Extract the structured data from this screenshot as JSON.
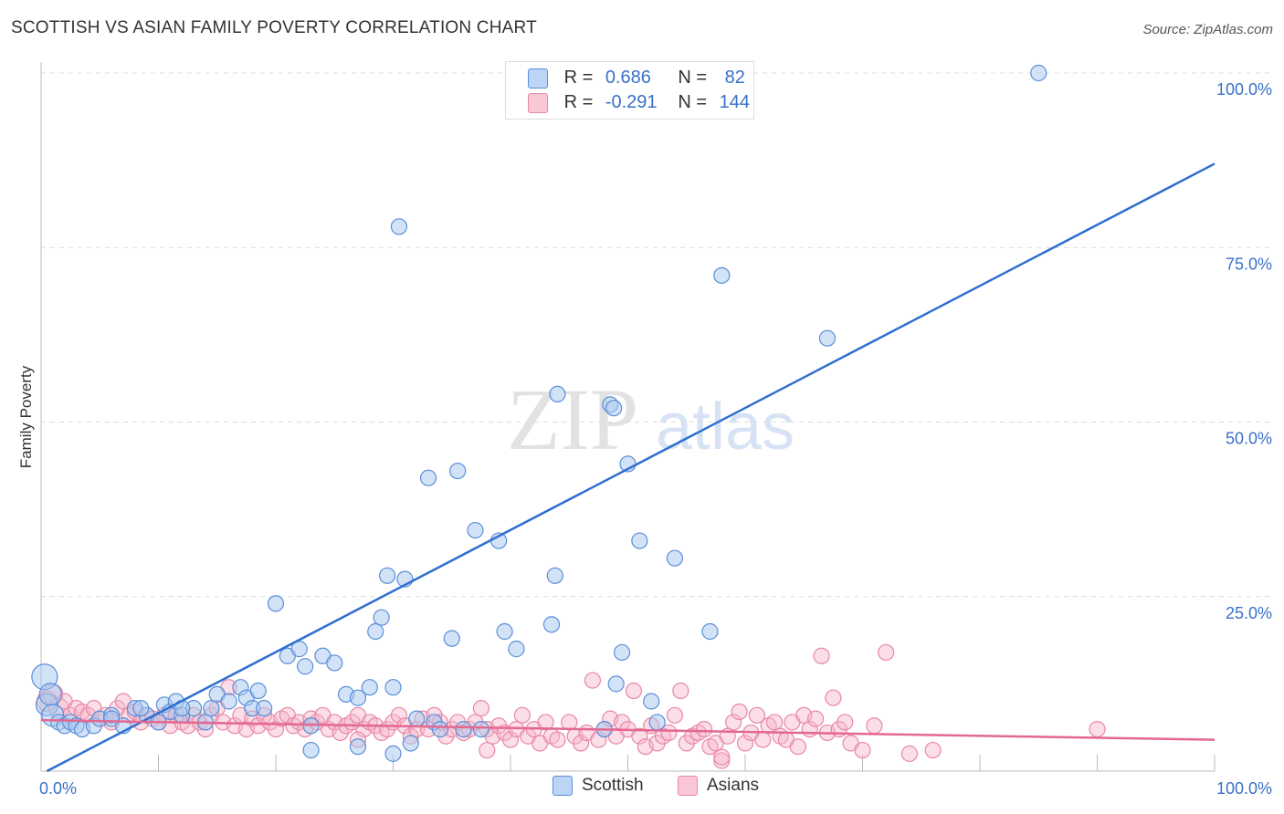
{
  "title": "SCOTTISH VS ASIAN FAMILY POVERTY CORRELATION CHART",
  "source": "Source: ZipAtlas.com",
  "watermark": {
    "zip": "ZIP",
    "atlas": "atlas"
  },
  "legend": {
    "r_label": "R =",
    "n_label": "N =",
    "rows": [
      {
        "r": "0.686",
        "n": "82"
      },
      {
        "r": "-0.291",
        "n": "144"
      }
    ]
  },
  "colors": {
    "scottish_fill": "#a8c8f0",
    "scottish_stroke": "#5a8fd8",
    "scottish_line": "#2f6fd0",
    "asian_fill": "#f7b6c9",
    "asian_stroke": "#e888a6",
    "asian_line": "#e36891",
    "axis_text": "#3a70c8"
  },
  "chart_data": {
    "type": "scatter",
    "title": "SCOTTISH VS ASIAN FAMILY POVERTY CORRELATION CHART",
    "xlabel": "",
    "ylabel": "Family Poverty",
    "xlim": [
      0,
      100
    ],
    "ylim": [
      0,
      100
    ],
    "x_tick_labels": [
      "0.0%",
      "100.0%"
    ],
    "y_tick_labels": [
      "25.0%",
      "50.0%",
      "75.0%",
      "100.0%"
    ],
    "y_ticks": [
      25,
      50,
      75,
      100
    ],
    "grid": true,
    "legend_position": "top-center",
    "series": [
      {
        "name": "Scottish",
        "r": 0.686,
        "n": 82,
        "trend": [
          [
            0.5,
            0
          ],
          [
            100,
            87
          ]
        ],
        "points": [
          [
            0.3,
            13.5
          ],
          [
            0.5,
            9.5
          ],
          [
            0.8,
            11
          ],
          [
            1,
            8
          ],
          [
            1.5,
            7
          ],
          [
            2,
            6.5
          ],
          [
            2.5,
            7
          ],
          [
            3,
            6.5
          ],
          [
            3.5,
            6
          ],
          [
            4.5,
            6.5
          ],
          [
            5,
            7.5
          ],
          [
            6,
            8
          ],
          [
            7,
            6.5
          ],
          [
            8,
            9
          ],
          [
            9,
            8
          ],
          [
            10,
            7
          ],
          [
            10.5,
            9.5
          ],
          [
            11,
            8.5
          ],
          [
            11.5,
            10
          ],
          [
            12,
            8
          ],
          [
            13,
            9
          ],
          [
            14,
            7
          ],
          [
            14.5,
            9
          ],
          [
            15,
            11
          ],
          [
            16,
            10
          ],
          [
            17,
            12
          ],
          [
            17.5,
            10.5
          ],
          [
            18,
            9
          ],
          [
            18.5,
            11.5
          ],
          [
            20,
            24
          ],
          [
            21,
            16.5
          ],
          [
            22,
            17.5
          ],
          [
            22.5,
            15
          ],
          [
            23,
            6.5
          ],
          [
            24,
            16.5
          ],
          [
            25,
            15.5
          ],
          [
            26,
            11
          ],
          [
            27,
            10.5
          ],
          [
            28,
            12
          ],
          [
            28.5,
            20
          ],
          [
            29,
            22
          ],
          [
            29.5,
            28
          ],
          [
            30,
            12
          ],
          [
            30.5,
            78
          ],
          [
            31,
            27.5
          ],
          [
            31.5,
            4
          ],
          [
            32,
            7.5
          ],
          [
            33,
            42
          ],
          [
            33.5,
            7
          ],
          [
            34,
            6
          ],
          [
            35,
            19
          ],
          [
            35.5,
            43
          ],
          [
            36,
            6
          ],
          [
            37,
            34.5
          ],
          [
            37.5,
            6
          ],
          [
            39,
            33
          ],
          [
            39.5,
            20
          ],
          [
            40.5,
            17.5
          ],
          [
            43.5,
            21
          ],
          [
            43.8,
            28
          ],
          [
            44,
            54
          ],
          [
            48,
            6
          ],
          [
            48.5,
            52.5
          ],
          [
            48.8,
            52
          ],
          [
            49,
            12.5
          ],
          [
            49.5,
            17
          ],
          [
            50,
            44
          ],
          [
            51,
            33
          ],
          [
            52,
            10
          ],
          [
            52.5,
            7
          ],
          [
            54,
            30.5
          ],
          [
            57,
            20
          ],
          [
            58,
            71
          ],
          [
            67,
            62
          ],
          [
            85,
            100
          ],
          [
            23,
            3
          ],
          [
            27,
            3.5
          ],
          [
            30,
            2.5
          ],
          [
            12,
            9
          ],
          [
            19,
            9
          ],
          [
            8.5,
            9
          ],
          [
            6,
            7.5
          ]
        ]
      },
      {
        "name": "Asians",
        "r": -0.291,
        "n": 144,
        "trend": [
          [
            0,
            7.3
          ],
          [
            100,
            4.5
          ]
        ],
        "points": [
          [
            0.5,
            10
          ],
          [
            1,
            11
          ],
          [
            1.5,
            9
          ],
          [
            2,
            10
          ],
          [
            2.5,
            8
          ],
          [
            3,
            9
          ],
          [
            3.5,
            8.5
          ],
          [
            4,
            8
          ],
          [
            4.5,
            9
          ],
          [
            5,
            7.5
          ],
          [
            5.5,
            8
          ],
          [
            6,
            7
          ],
          [
            6.5,
            9
          ],
          [
            7,
            10
          ],
          [
            7.5,
            8
          ],
          [
            8,
            8.5
          ],
          [
            8.5,
            7
          ],
          [
            9,
            8
          ],
          [
            9.5,
            7.5
          ],
          [
            10,
            7
          ],
          [
            10.5,
            8
          ],
          [
            11,
            6.5
          ],
          [
            11.5,
            8
          ],
          [
            12,
            7
          ],
          [
            12.5,
            6.5
          ],
          [
            13,
            8
          ],
          [
            13.5,
            7
          ],
          [
            14,
            6
          ],
          [
            14.5,
            8
          ],
          [
            15,
            9
          ],
          [
            15.5,
            7
          ],
          [
            16,
            12
          ],
          [
            16.5,
            6.5
          ],
          [
            17,
            8
          ],
          [
            17.5,
            6
          ],
          [
            18,
            7.5
          ],
          [
            18.5,
            6.5
          ],
          [
            19,
            8
          ],
          [
            19.5,
            7
          ],
          [
            20,
            6
          ],
          [
            20.5,
            7.5
          ],
          [
            21,
            8
          ],
          [
            21.5,
            6.5
          ],
          [
            22,
            7
          ],
          [
            22.5,
            6
          ],
          [
            23,
            7.5
          ],
          [
            23.5,
            7
          ],
          [
            24,
            8
          ],
          [
            24.5,
            6
          ],
          [
            25,
            7
          ],
          [
            25.5,
            5.5
          ],
          [
            26,
            6.5
          ],
          [
            26.5,
            7
          ],
          [
            27,
            8
          ],
          [
            27.5,
            6
          ],
          [
            28,
            7
          ],
          [
            28.5,
            6.5
          ],
          [
            29,
            5.5
          ],
          [
            29.5,
            6
          ],
          [
            30,
            7
          ],
          [
            30.5,
            8
          ],
          [
            31,
            6.5
          ],
          [
            31.5,
            5
          ],
          [
            32,
            6
          ],
          [
            32.5,
            7.5
          ],
          [
            33,
            6
          ],
          [
            33.5,
            8
          ],
          [
            34,
            7
          ],
          [
            34.5,
            5
          ],
          [
            35,
            6
          ],
          [
            35.5,
            7
          ],
          [
            36,
            5.5
          ],
          [
            36.5,
            6
          ],
          [
            37,
            7
          ],
          [
            37.5,
            9
          ],
          [
            38,
            6
          ],
          [
            38.5,
            5
          ],
          [
            39,
            6.5
          ],
          [
            39.5,
            5.5
          ],
          [
            40,
            4.5
          ],
          [
            40.5,
            6
          ],
          [
            41,
            8
          ],
          [
            41.5,
            5
          ],
          [
            42,
            6
          ],
          [
            42.5,
            4
          ],
          [
            43,
            7
          ],
          [
            43.5,
            5
          ],
          [
            44,
            4.5
          ],
          [
            45,
            7
          ],
          [
            45.5,
            5
          ],
          [
            46,
            4
          ],
          [
            46.5,
            5.5
          ],
          [
            47,
            13
          ],
          [
            47.5,
            4.5
          ],
          [
            48,
            6
          ],
          [
            48.5,
            7.5
          ],
          [
            49,
            5
          ],
          [
            49.5,
            7
          ],
          [
            50,
            6
          ],
          [
            50.5,
            11.5
          ],
          [
            51,
            5
          ],
          [
            51.5,
            3.5
          ],
          [
            52,
            6.5
          ],
          [
            52.5,
            4
          ],
          [
            53,
            5
          ],
          [
            53.5,
            5.5
          ],
          [
            54,
            8
          ],
          [
            54.5,
            11.5
          ],
          [
            55,
            4
          ],
          [
            55.5,
            5
          ],
          [
            56,
            5.5
          ],
          [
            56.5,
            6
          ],
          [
            57,
            3.5
          ],
          [
            57.5,
            4
          ],
          [
            58,
            1.5
          ],
          [
            58.5,
            5
          ],
          [
            59,
            7
          ],
          [
            59.5,
            8.5
          ],
          [
            60,
            4
          ],
          [
            60.5,
            5.5
          ],
          [
            61,
            8
          ],
          [
            61.5,
            4.5
          ],
          [
            62,
            6.5
          ],
          [
            62.5,
            7
          ],
          [
            63,
            5
          ],
          [
            63.5,
            4.5
          ],
          [
            64,
            7
          ],
          [
            64.5,
            3.5
          ],
          [
            65,
            8
          ],
          [
            65.5,
            6
          ],
          [
            66,
            7.5
          ],
          [
            66.5,
            16.5
          ],
          [
            67,
            5.5
          ],
          [
            67.5,
            10.5
          ],
          [
            68,
            6
          ],
          [
            68.5,
            7
          ],
          [
            69,
            4
          ],
          [
            70,
            3
          ],
          [
            71,
            6.5
          ],
          [
            72,
            17
          ],
          [
            74,
            2.5
          ],
          [
            76,
            3
          ],
          [
            90,
            6
          ],
          [
            58,
            2
          ],
          [
            38,
            3
          ],
          [
            27,
            4.5
          ]
        ]
      }
    ]
  },
  "bottom_legend": [
    "Scottish",
    "Asians"
  ]
}
